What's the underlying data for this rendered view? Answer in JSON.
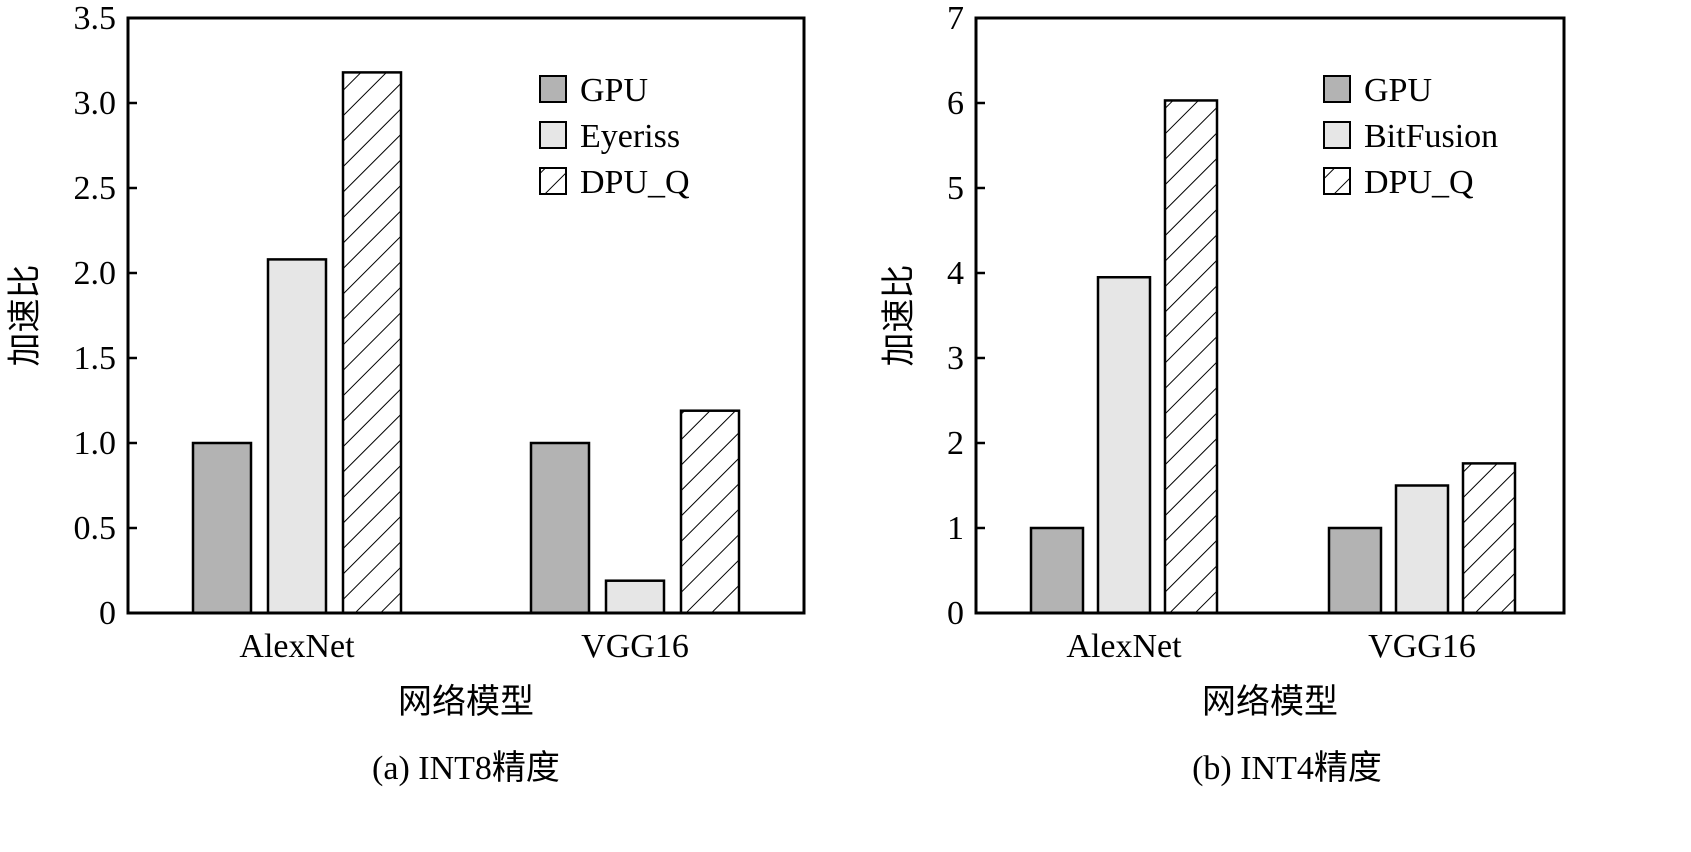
{
  "chart_data": [
    {
      "type": "bar",
      "caption": "(a)  INT8精度",
      "xlabel": "网络模型",
      "ylabel": "加速比",
      "categories": [
        "AlexNet",
        "VGG16"
      ],
      "yticks": [
        "0",
        "0.5",
        "1.0",
        "1.5",
        "2.0",
        "2.5",
        "3.0",
        "3.5"
      ],
      "ylim": [
        0,
        3.5
      ],
      "series": [
        {
          "name": "GPU",
          "values": [
            1.0,
            1.0
          ],
          "fill": "#b3b3b3",
          "pattern": "solid"
        },
        {
          "name": "Eyeriss",
          "values": [
            2.08,
            0.19
          ],
          "fill": "#e6e6e6",
          "pattern": "solid"
        },
        {
          "name": "DPU_Q",
          "values": [
            3.18,
            1.19
          ],
          "fill": "#ffffff",
          "pattern": "hatch"
        }
      ],
      "legend_position": "top-right",
      "grid": false
    },
    {
      "type": "bar",
      "caption": "(b)  INT4精度",
      "xlabel": "网络模型",
      "ylabel": "加速比",
      "categories": [
        "AlexNet",
        "VGG16"
      ],
      "yticks": [
        "0",
        "1",
        "2",
        "3",
        "4",
        "5",
        "6",
        "7"
      ],
      "ylim": [
        0,
        7
      ],
      "series": [
        {
          "name": "GPU",
          "values": [
            1.0,
            1.0
          ],
          "fill": "#b3b3b3",
          "pattern": "solid"
        },
        {
          "name": "BitFusion",
          "values": [
            3.95,
            1.5
          ],
          "fill": "#e6e6e6",
          "pattern": "solid"
        },
        {
          "name": "DPU_Q",
          "values": [
            6.03,
            1.76
          ],
          "fill": "#ffffff",
          "pattern": "hatch"
        }
      ],
      "legend_position": "top-right",
      "grid": false
    }
  ]
}
